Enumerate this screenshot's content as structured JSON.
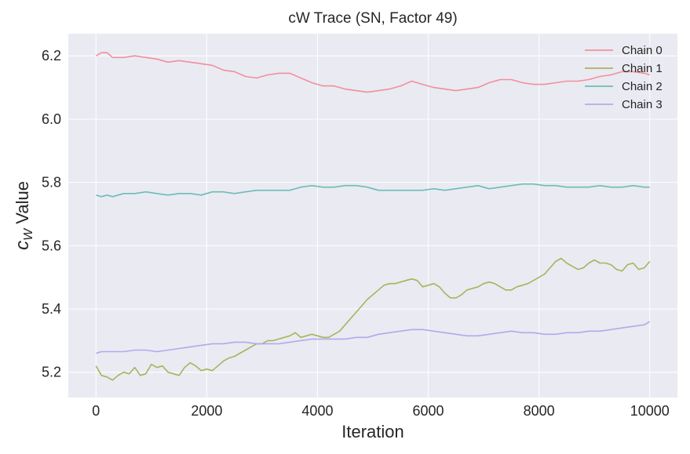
{
  "chart_data": {
    "type": "line",
    "title": "cW Trace (SN, Factor 49)",
    "xlabel": "Iteration",
    "ylabel_main": "c",
    "ylabel_sub": "W",
    "ylabel_rest": " Value",
    "xlim": [
      -500,
      10500
    ],
    "ylim": [
      5.12,
      6.27
    ],
    "xticks": [
      0,
      2000,
      4000,
      6000,
      8000,
      10000
    ],
    "xtick_labels": [
      "0",
      "2000",
      "4000",
      "6000",
      "8000",
      "10000"
    ],
    "yticks": [
      5.2,
      5.4,
      5.6,
      5.8,
      6.0,
      6.2
    ],
    "ytick_labels": [
      "5.2",
      "5.4",
      "5.6",
      "5.8",
      "6.0",
      "6.2"
    ],
    "grid": true,
    "legend_position": "top-right",
    "series": [
      {
        "name": "Chain 0",
        "color": "#f0909c",
        "x": [
          0,
          100,
          200,
          300,
          500,
          700,
          900,
          1100,
          1300,
          1500,
          1700,
          1900,
          2100,
          2300,
          2500,
          2700,
          2900,
          3100,
          3300,
          3500,
          3700,
          3900,
          4100,
          4300,
          4500,
          4700,
          4900,
          5100,
          5300,
          5500,
          5700,
          5900,
          6100,
          6300,
          6500,
          6700,
          6900,
          7100,
          7300,
          7500,
          7700,
          7900,
          8100,
          8300,
          8500,
          8700,
          8900,
          9100,
          9300,
          9500,
          9700,
          9900,
          10000
        ],
        "y": [
          6.2,
          6.21,
          6.21,
          6.195,
          6.195,
          6.2,
          6.195,
          6.19,
          6.18,
          6.185,
          6.18,
          6.175,
          6.17,
          6.155,
          6.15,
          6.135,
          6.13,
          6.14,
          6.145,
          6.145,
          6.13,
          6.115,
          6.105,
          6.105,
          6.095,
          6.09,
          6.085,
          6.09,
          6.095,
          6.105,
          6.12,
          6.11,
          6.1,
          6.095,
          6.09,
          6.095,
          6.1,
          6.115,
          6.125,
          6.125,
          6.115,
          6.11,
          6.11,
          6.115,
          6.12,
          6.12,
          6.125,
          6.135,
          6.14,
          6.15,
          6.15,
          6.145,
          6.14
        ]
      },
      {
        "name": "Chain 1",
        "color": "#a9b35c",
        "x": [
          0,
          100,
          200,
          300,
          400,
          500,
          600,
          700,
          800,
          900,
          1000,
          1100,
          1200,
          1300,
          1400,
          1500,
          1600,
          1700,
          1800,
          1900,
          2000,
          2100,
          2200,
          2300,
          2400,
          2500,
          2600,
          2700,
          2800,
          2900,
          3000,
          3100,
          3200,
          3300,
          3400,
          3500,
          3600,
          3700,
          3800,
          3900,
          4000,
          4100,
          4200,
          4300,
          4400,
          4500,
          4600,
          4700,
          4800,
          4900,
          5000,
          5100,
          5200,
          5300,
          5400,
          5500,
          5600,
          5700,
          5800,
          5900,
          6000,
          6100,
          6200,
          6300,
          6400,
          6500,
          6600,
          6700,
          6800,
          6900,
          7000,
          7100,
          7200,
          7300,
          7400,
          7500,
          7600,
          7700,
          7800,
          7900,
          8000,
          8100,
          8200,
          8300,
          8400,
          8500,
          8600,
          8700,
          8800,
          8900,
          9000,
          9100,
          9200,
          9300,
          9400,
          9500,
          9600,
          9700,
          9800,
          9900,
          10000
        ],
        "y": [
          5.22,
          5.19,
          5.185,
          5.175,
          5.19,
          5.2,
          5.195,
          5.215,
          5.19,
          5.195,
          5.225,
          5.215,
          5.22,
          5.2,
          5.195,
          5.19,
          5.215,
          5.23,
          5.22,
          5.205,
          5.21,
          5.205,
          5.22,
          5.235,
          5.245,
          5.25,
          5.26,
          5.27,
          5.28,
          5.29,
          5.29,
          5.3,
          5.3,
          5.305,
          5.31,
          5.315,
          5.325,
          5.31,
          5.315,
          5.32,
          5.315,
          5.31,
          5.31,
          5.32,
          5.33,
          5.35,
          5.37,
          5.39,
          5.41,
          5.43,
          5.445,
          5.46,
          5.475,
          5.48,
          5.48,
          5.485,
          5.49,
          5.495,
          5.49,
          5.47,
          5.475,
          5.48,
          5.47,
          5.45,
          5.435,
          5.435,
          5.445,
          5.46,
          5.465,
          5.47,
          5.48,
          5.485,
          5.48,
          5.47,
          5.46,
          5.46,
          5.47,
          5.475,
          5.48,
          5.49,
          5.5,
          5.51,
          5.53,
          5.55,
          5.56,
          5.545,
          5.535,
          5.525,
          5.53,
          5.545,
          5.555,
          5.545,
          5.545,
          5.54,
          5.525,
          5.52,
          5.54,
          5.545,
          5.525,
          5.53,
          5.55
        ]
      },
      {
        "name": "Chain 2",
        "color": "#6cbdb5",
        "x": [
          0,
          100,
          200,
          300,
          500,
          700,
          900,
          1100,
          1300,
          1500,
          1700,
          1900,
          2100,
          2300,
          2500,
          2700,
          2900,
          3100,
          3300,
          3500,
          3700,
          3900,
          4100,
          4300,
          4500,
          4700,
          4900,
          5100,
          5300,
          5500,
          5700,
          5900,
          6100,
          6300,
          6500,
          6700,
          6900,
          7100,
          7300,
          7500,
          7700,
          7900,
          8100,
          8300,
          8500,
          8700,
          8900,
          9100,
          9300,
          9500,
          9700,
          9900,
          10000
        ],
        "y": [
          5.76,
          5.755,
          5.76,
          5.755,
          5.765,
          5.765,
          5.77,
          5.765,
          5.76,
          5.765,
          5.765,
          5.76,
          5.77,
          5.77,
          5.765,
          5.77,
          5.775,
          5.775,
          5.775,
          5.775,
          5.785,
          5.79,
          5.785,
          5.785,
          5.79,
          5.79,
          5.785,
          5.775,
          5.775,
          5.775,
          5.775,
          5.775,
          5.78,
          5.775,
          5.78,
          5.785,
          5.79,
          5.78,
          5.785,
          5.79,
          5.795,
          5.795,
          5.79,
          5.79,
          5.785,
          5.785,
          5.785,
          5.79,
          5.785,
          5.785,
          5.79,
          5.785,
          5.785
        ]
      },
      {
        "name": "Chain 3",
        "color": "#b4a7ec",
        "x": [
          0,
          100,
          200,
          300,
          500,
          700,
          900,
          1100,
          1300,
          1500,
          1700,
          1900,
          2100,
          2300,
          2500,
          2700,
          2900,
          3100,
          3300,
          3500,
          3700,
          3900,
          4100,
          4300,
          4500,
          4700,
          4900,
          5100,
          5300,
          5500,
          5700,
          5900,
          6100,
          6300,
          6500,
          6700,
          6900,
          7100,
          7300,
          7500,
          7700,
          7900,
          8100,
          8300,
          8500,
          8700,
          8900,
          9100,
          9300,
          9500,
          9700,
          9900,
          10000
        ],
        "y": [
          5.26,
          5.265,
          5.265,
          5.265,
          5.265,
          5.27,
          5.27,
          5.265,
          5.27,
          5.275,
          5.28,
          5.285,
          5.29,
          5.29,
          5.295,
          5.295,
          5.29,
          5.29,
          5.29,
          5.295,
          5.3,
          5.305,
          5.305,
          5.305,
          5.305,
          5.31,
          5.31,
          5.32,
          5.325,
          5.33,
          5.335,
          5.335,
          5.33,
          5.325,
          5.32,
          5.315,
          5.315,
          5.32,
          5.325,
          5.33,
          5.325,
          5.325,
          5.32,
          5.32,
          5.325,
          5.325,
          5.33,
          5.33,
          5.335,
          5.34,
          5.345,
          5.35,
          5.36
        ]
      }
    ]
  }
}
